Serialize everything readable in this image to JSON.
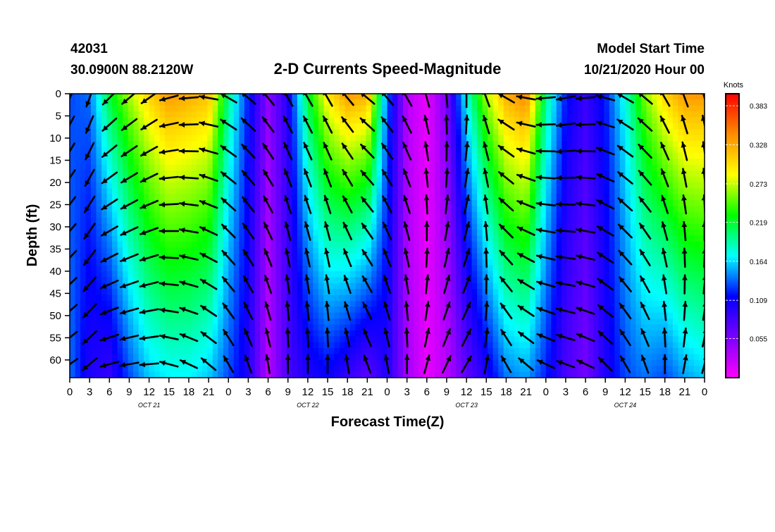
{
  "header": {
    "station_id": "42031",
    "station_location": "30.0900N 88.2120W",
    "title": "2-D Currents Speed-Magnitude",
    "model_label": "Model Start Time",
    "model_time": "10/21/2020 Hour 00"
  },
  "chart_data": {
    "type": "heatmap",
    "title": "2-D Currents Speed-Magnitude",
    "xlabel": "Forecast Time(Z)",
    "ylabel": "Depth (ft)",
    "x_tick_labels": [
      "0",
      "3",
      "6",
      "9",
      "12",
      "15",
      "18",
      "21",
      "0",
      "3",
      "6",
      "9",
      "12",
      "15",
      "18",
      "21",
      "0",
      "3",
      "6",
      "9",
      "12",
      "15",
      "18",
      "21",
      "0",
      "3",
      "6",
      "9",
      "12",
      "15",
      "18",
      "21",
      "0"
    ],
    "x_range_hours": [
      0,
      96
    ],
    "day_labels": [
      {
        "label": "OCT 21",
        "hour_center": 12
      },
      {
        "label": "OCT 22",
        "hour_center": 36
      },
      {
        "label": "OCT 23",
        "hour_center": 60
      },
      {
        "label": "OCT 24",
        "hour_center": 84
      }
    ],
    "y_tick_labels": [
      "0",
      "5",
      "10",
      "15",
      "20",
      "25",
      "30",
      "35",
      "40",
      "45",
      "50",
      "55",
      "60"
    ],
    "y_range_ft": [
      0,
      64
    ],
    "y_inverted": true,
    "colorbar": {
      "label": "Knots",
      "tick_labels": [
        "0.383",
        "0.328",
        "0.273",
        "0.219",
        "0.164",
        "0.109",
        "0.055"
      ],
      "tick_values": [
        0.383,
        0.328,
        0.273,
        0.219,
        0.164,
        0.109,
        0.055
      ],
      "range": [
        0,
        0.4
      ],
      "colors": [
        "#ff00ff",
        "#7a00ff",
        "#0000ff",
        "#00ffff",
        "#00ff00",
        "#ffff00",
        "#ff8c00",
        "#ff0000"
      ]
    },
    "surface_speed_by_hour": {
      "hours": [
        0,
        3,
        6,
        9,
        12,
        15,
        18,
        21,
        24,
        27,
        30,
        33,
        36,
        39,
        42,
        45,
        48,
        51,
        54,
        57,
        60,
        63,
        66,
        69,
        72,
        75,
        78,
        81,
        84,
        87,
        90,
        93,
        96
      ],
      "knots": [
        0.13,
        0.14,
        0.22,
        0.27,
        0.31,
        0.34,
        0.33,
        0.32,
        0.2,
        0.12,
        0.05,
        0.1,
        0.22,
        0.3,
        0.34,
        0.33,
        0.14,
        0.03,
        0.01,
        0.06,
        0.18,
        0.27,
        0.33,
        0.35,
        0.2,
        0.12,
        0.09,
        0.12,
        0.18,
        0.26,
        0.31,
        0.34,
        0.34
      ]
    },
    "bottom_speed_by_hour": {
      "hours": [
        0,
        3,
        6,
        9,
        12,
        15,
        18,
        21,
        24,
        27,
        30,
        33,
        36,
        39,
        42,
        45,
        48,
        51,
        54,
        57,
        60,
        63,
        66,
        69,
        72,
        75,
        78,
        81,
        84,
        87,
        90,
        93,
        96
      ],
      "knots": [
        0.14,
        0.1,
        0.09,
        0.13,
        0.16,
        0.17,
        0.17,
        0.16,
        0.13,
        0.1,
        0.03,
        0.08,
        0.1,
        0.11,
        0.09,
        0.07,
        0.1,
        0.04,
        0.01,
        0.03,
        0.07,
        0.1,
        0.14,
        0.15,
        0.12,
        0.08,
        0.06,
        0.1,
        0.13,
        0.14,
        0.13,
        0.15,
        0.16
      ]
    },
    "vector_hours": [
      0,
      3,
      6,
      9,
      12,
      15,
      18,
      21,
      24,
      27,
      30,
      33,
      36,
      39,
      42,
      45,
      48,
      51,
      54,
      57,
      60,
      63,
      66,
      69,
      72,
      75,
      78,
      81,
      84,
      87,
      90,
      93,
      96
    ],
    "vector_depths_ft": [
      0,
      6,
      12,
      18,
      24,
      30,
      36,
      42,
      48,
      54,
      60
    ],
    "vector_direction_deg_by_hour": [
      205,
      200,
      225,
      230,
      235,
      255,
      265,
      280,
      300,
      310,
      320,
      330,
      330,
      330,
      320,
      310,
      320,
      330,
      345,
      355,
      0,
      340,
      300,
      280,
      265,
      260,
      265,
      285,
      300,
      310,
      330,
      340,
      345
    ]
  }
}
